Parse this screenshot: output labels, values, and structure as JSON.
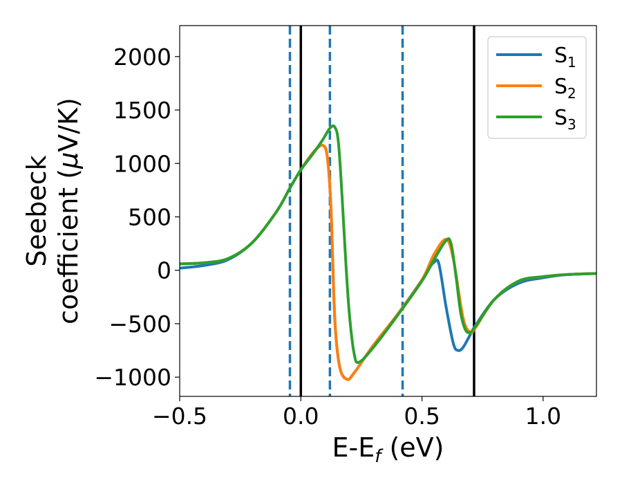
{
  "chart_data": {
    "type": "line",
    "title": "",
    "xlabel": "E-E",
    "xlabel_sub": "f",
    "xlabel_unit": " (eV)",
    "ylabel_line1": "Seebeck",
    "ylabel_line2_prefix": "coefficient  (",
    "ylabel_mu": "μ",
    "ylabel_line2_suffix": "V/K)",
    "xlim": [
      -0.5,
      1.22
    ],
    "ylim": [
      -1180,
      2290
    ],
    "xticks": [
      -0.5,
      0.0,
      0.5,
      1.0
    ],
    "xtick_labels": [
      "−0.5",
      "0.0",
      "0.5",
      "1.0"
    ],
    "yticks": [
      -1000,
      -500,
      0,
      500,
      1000,
      1500,
      2000
    ],
    "ytick_labels": [
      "−1000",
      "−500",
      "0",
      "500",
      "1000",
      "1500",
      "2000"
    ],
    "grid": false,
    "legend_position": "top-right",
    "vertical_lines": [
      {
        "x": -0.045,
        "style": "dashed",
        "color": "#1f77b4"
      },
      {
        "x": 0.0,
        "style": "solid",
        "color": "#000000"
      },
      {
        "x": 0.12,
        "style": "dashed",
        "color": "#1f77b4"
      },
      {
        "x": 0.42,
        "style": "dashed",
        "color": "#1f77b4"
      },
      {
        "x": 0.715,
        "style": "solid",
        "color": "#000000"
      }
    ],
    "series": [
      {
        "name": "S",
        "sub": "1",
        "color": "#1f77b4",
        "x": [
          -0.5,
          -0.4,
          -0.3,
          -0.2,
          -0.1,
          -0.045,
          0.0,
          0.05,
          0.09,
          0.11,
          0.125,
          0.14,
          0.16,
          0.19,
          0.22,
          0.3,
          0.4,
          0.5,
          0.53,
          0.55,
          0.57,
          0.6,
          0.63,
          0.65,
          0.67,
          0.7,
          0.72,
          0.8,
          0.9,
          1.0,
          1.1,
          1.22
        ],
        "y": [
          20,
          45,
          100,
          260,
          550,
          770,
          940,
          1100,
          1170,
          1050,
          550,
          -450,
          -900,
          -1020,
          -960,
          -700,
          -410,
          -90,
          20,
          75,
          60,
          -350,
          -690,
          -750,
          -720,
          -600,
          -520,
          -270,
          -120,
          -70,
          -40,
          -30
        ]
      },
      {
        "name": "S",
        "sub": "2",
        "color": "#ff7f0e",
        "x": [
          -0.5,
          -0.4,
          -0.3,
          -0.2,
          -0.1,
          -0.045,
          0.0,
          0.05,
          0.09,
          0.11,
          0.125,
          0.14,
          0.16,
          0.19,
          0.22,
          0.3,
          0.4,
          0.5,
          0.55,
          0.6,
          0.63,
          0.67,
          0.7,
          0.72,
          0.8,
          0.9,
          1.0,
          1.1,
          1.22
        ],
        "y": [
          60,
          70,
          110,
          260,
          550,
          770,
          940,
          1100,
          1170,
          1050,
          550,
          -450,
          -900,
          -1020,
          -960,
          -700,
          -410,
          -90,
          150,
          290,
          100,
          -450,
          -580,
          -540,
          -270,
          -100,
          -60,
          -40,
          -30
        ]
      },
      {
        "name": "S",
        "sub": "3",
        "color": "#2ca02c",
        "x": [
          -0.5,
          -0.4,
          -0.3,
          -0.2,
          -0.1,
          -0.045,
          0.0,
          0.05,
          0.09,
          0.12,
          0.14,
          0.155,
          0.17,
          0.185,
          0.2,
          0.22,
          0.24,
          0.3,
          0.4,
          0.5,
          0.55,
          0.6,
          0.62,
          0.64,
          0.66,
          0.68,
          0.7,
          0.72,
          0.8,
          0.9,
          1.0,
          1.1,
          1.22
        ],
        "y": [
          60,
          70,
          110,
          260,
          550,
          770,
          940,
          1090,
          1220,
          1330,
          1340,
          1200,
          700,
          100,
          -400,
          -780,
          -860,
          -720,
          -420,
          -100,
          100,
          280,
          250,
          -50,
          -400,
          -560,
          -580,
          -530,
          -270,
          -100,
          -60,
          -40,
          -30
        ]
      }
    ]
  }
}
